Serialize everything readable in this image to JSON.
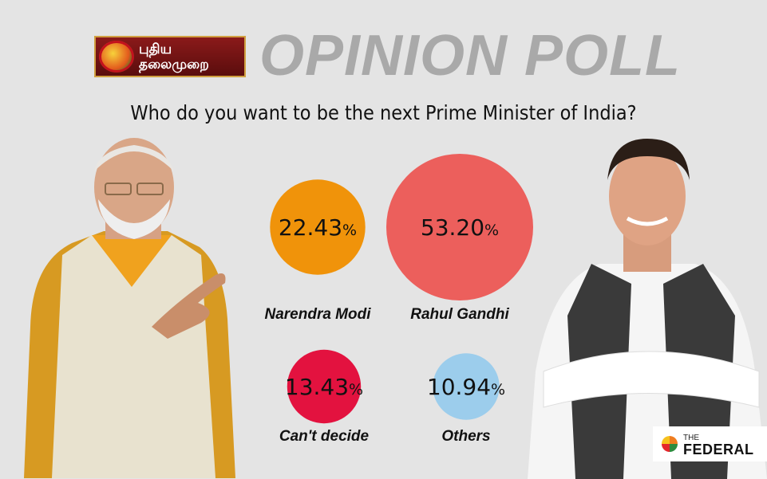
{
  "logo": {
    "line1": "புதிய",
    "line2": "தலைமுறை"
  },
  "headline": "OPINION POLL",
  "question": "Who do you want to be the next Prime Minister of India?",
  "brand": {
    "small": "THE",
    "big": "FEDERAL"
  },
  "chart_data": {
    "type": "bubble",
    "unit": "%",
    "title": "Who do you want to be the next Prime Minister of India?",
    "categories": [
      "Narendra Modi",
      "Rahul Gandhi",
      "Can't decide",
      "Others"
    ],
    "values": [
      22.43,
      53.2,
      13.43,
      10.94
    ],
    "labels": [
      "22.43",
      "53.20",
      "13.43",
      "10.94"
    ],
    "colors": [
      "#f0930a",
      "#ec5f5c",
      "#e3123f",
      "#9ccdec"
    ]
  }
}
